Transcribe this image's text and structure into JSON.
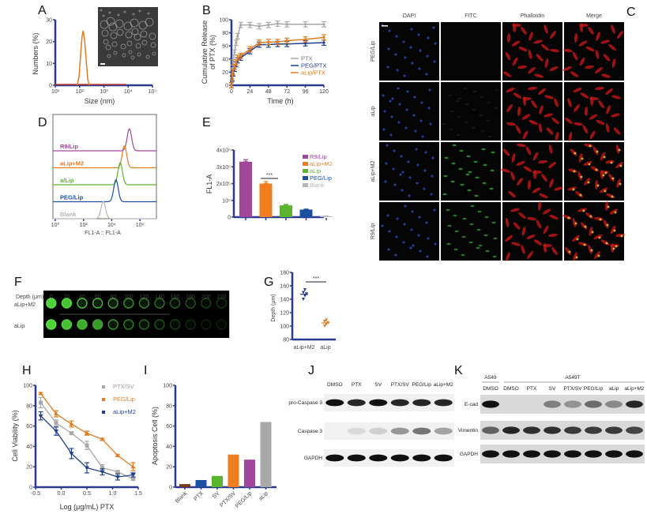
{
  "panels": {
    "A": "A",
    "B": "B",
    "C": "C",
    "D": "D",
    "E": "E",
    "F": "F",
    "G": "G",
    "H": "H",
    "I": "I",
    "J": "J",
    "K": "K"
  },
  "colors": {
    "axis": "#2b3a8f",
    "orange": "#e07b22",
    "gray": "#a8a8a8",
    "navy": "#1f3f8f",
    "purple": "#a0479b",
    "green": "#5ab52e",
    "blue": "#1c4fa0",
    "brown": "#7a3b1a"
  },
  "chart_data": [
    {
      "id": "A",
      "type": "line",
      "xlabel": "Size (nm)",
      "ylabel": "Numbers (%)",
      "xscale": "log",
      "xlim": [
        10,
        100000
      ],
      "ylim": [
        0,
        30
      ],
      "xticks": [
        "10¹",
        "10²",
        "10³",
        "10⁴",
        "10⁵"
      ],
      "yticks": [
        0,
        10,
        20,
        30
      ],
      "x": [
        80,
        95,
        110,
        125,
        140,
        160,
        185,
        215,
        250
      ],
      "y": [
        0,
        4,
        14,
        22,
        25,
        21,
        12,
        3,
        0
      ],
      "inset": "TEM image"
    },
    {
      "id": "B",
      "type": "line",
      "xlabel": "Time (h)",
      "ylabel": "Cumulative Release of PTX (%)",
      "xlim": [
        0,
        120
      ],
      "ylim": [
        0,
        100
      ],
      "xticks": [
        0,
        24,
        48,
        72,
        96,
        120
      ],
      "yticks": [
        0,
        20,
        40,
        60,
        80,
        100
      ],
      "x": [
        0,
        1,
        2,
        4,
        6,
        8,
        12,
        24,
        36,
        48,
        60,
        72,
        96,
        120
      ],
      "series": [
        {
          "name": "PTX",
          "color": "#a8a8a8",
          "values": [
            0,
            22,
            35,
            50,
            65,
            75,
            92,
            92,
            90,
            92,
            94,
            93,
            93,
            93
          ]
        },
        {
          "name": "PEG/PTX",
          "color": "#1f3f8f",
          "values": [
            0,
            10,
            18,
            25,
            32,
            38,
            42,
            52,
            62,
            62,
            63,
            63,
            64,
            65
          ]
        },
        {
          "name": "aLip/PTX",
          "color": "#e07b22",
          "values": [
            0,
            12,
            20,
            28,
            35,
            42,
            45,
            55,
            65,
            66,
            66,
            68,
            70,
            73
          ]
        }
      ],
      "legend": "bottom-right"
    },
    {
      "id": "D",
      "type": "histogram",
      "xlabel": "FL1-A :: FL1-A",
      "xscale": "log",
      "xticks": [
        "10⁰",
        "10²",
        "10⁴",
        "10⁶"
      ],
      "series": [
        {
          "name": "R9/Lip",
          "color": "#a0479b",
          "peak_log10": 5.25
        },
        {
          "name": "aLip+M2",
          "color": "#e07b22",
          "peak_log10": 4.9
        },
        {
          "name": "a/Lip",
          "color": "#5ab52e",
          "peak_log10": 4.6
        },
        {
          "name": "PEG/Lip",
          "color": "#1c4fa0",
          "peak_log10": 4.3
        },
        {
          "name": "Blank",
          "color": "#b5b5b5",
          "peak_log10": 3.4
        }
      ]
    },
    {
      "id": "E",
      "type": "bar",
      "ylabel": "FL1-A",
      "ylim": [
        0,
        400000
      ],
      "yticks": [
        "0",
        "10⁵",
        "2x10⁵",
        "3x10⁵",
        "4x10⁵"
      ],
      "categories": [
        "R9/Lip",
        "aLip+M2",
        "aLip",
        "PEG/Lip",
        "Blank"
      ],
      "values": [
        330000,
        200000,
        70000,
        45000,
        5000
      ],
      "errors": [
        12000,
        12000,
        6000,
        3000,
        1000
      ],
      "colors": [
        "#a0479b",
        "#f07e1e",
        "#5ab52e",
        "#1c4fa0",
        "#b5b5b5"
      ],
      "significance": "***",
      "legend": "right"
    },
    {
      "id": "G",
      "type": "scatter",
      "ylabel": "Depth (μm)",
      "ylim": [
        80,
        180
      ],
      "yticks": [
        80,
        100,
        120,
        140,
        160,
        180
      ],
      "categories": [
        "aLip+M2",
        "aLip"
      ],
      "points": [
        [
          140,
          145,
          148,
          150,
          154
        ],
        [
          100,
          103,
          105,
          107,
          109
        ]
      ],
      "colors": [
        "#2b3a8f",
        "#e07b22"
      ],
      "significance": "***"
    },
    {
      "id": "H",
      "type": "line",
      "xlabel": "Log (μg/mL) PTX",
      "ylabel": "Cell Viability (%)",
      "xlim": [
        -0.5,
        1.5
      ],
      "ylim": [
        0,
        100
      ],
      "xticks": [
        "-0.5",
        "0.0",
        "0.5",
        "1.0",
        "1.5"
      ],
      "yticks": [
        0,
        20,
        40,
        60,
        80,
        100
      ],
      "x": [
        -0.4,
        -0.1,
        0.2,
        0.5,
        0.8,
        1.1,
        1.4
      ],
      "series": [
        {
          "name": "PTX/SV",
          "color": "#a8a8a8",
          "values": [
            83,
            63,
            53,
            41,
            19,
            15,
            8
          ],
          "errors": [
            5,
            3,
            1,
            4,
            3,
            1,
            1
          ]
        },
        {
          "name": "PEG/Lip",
          "color": "#e07b22",
          "values": [
            92,
            72,
            62,
            53,
            47,
            31,
            20
          ],
          "errors": [
            1,
            3,
            3,
            2,
            1,
            1,
            4
          ]
        },
        {
          "name": "aLip+M2",
          "color": "#1f3f8f",
          "values": [
            70,
            55,
            33,
            19,
            15,
            10,
            12
          ],
          "errors": [
            4,
            4,
            5,
            5,
            3,
            3,
            2
          ]
        }
      ],
      "legend": "top-right"
    },
    {
      "id": "I",
      "type": "bar",
      "ylabel": "Apoptosis Cell (%)",
      "ylim": [
        0,
        100
      ],
      "yticks": [
        0,
        20,
        40,
        60,
        80,
        100
      ],
      "categories": [
        "Blank",
        "PTX",
        "SV",
        "PTX/SV",
        "PEG/Lip",
        "aLip"
      ],
      "values": [
        3,
        7,
        11,
        32,
        27,
        64
      ],
      "colors": [
        "#7a3b1a",
        "#1c4fa0",
        "#5ab52e",
        "#f07e1e",
        "#a0479b",
        "#a8a8a8"
      ]
    }
  ],
  "panelC": {
    "columns": [
      "DAPI",
      "FITC",
      "Phalloidin",
      "Merge"
    ],
    "rows": [
      "PEG/Lip",
      "aLip",
      "aLip+M2",
      "R9/Lip"
    ]
  },
  "panelF": {
    "depth_label": "Depth (μm)",
    "depths": [
      "0",
      "20",
      "40",
      "60",
      "80",
      "100",
      "120",
      "140",
      "160",
      "180",
      "200",
      "220"
    ],
    "rows": [
      "aLip+M2",
      "aLip"
    ]
  },
  "panelJ": {
    "lanes": [
      "DMSO",
      "PTX",
      "SV",
      "PTX/SV",
      "PEG/Lip",
      "aLip+M2"
    ],
    "bands": [
      "pro-Caspase 3",
      "Caspase 3",
      "GAPDH"
    ],
    "intensity": [
      [
        1,
        0.9,
        1,
        0.9,
        0.9,
        0.9
      ],
      [
        0,
        0.1,
        0.15,
        0.4,
        0.55,
        0.35
      ],
      [
        1,
        1,
        1,
        1,
        1,
        1
      ]
    ]
  },
  "panelK": {
    "group1": "A549",
    "group2": "A549T",
    "lanes": [
      "DMSO",
      "DMSO",
      "PTX",
      "SV",
      "PTX/SV",
      "PEG/Lip",
      "aLip",
      "aLip+M2"
    ],
    "bands": [
      "E-cad",
      "Vimentin",
      "GAPDH"
    ],
    "intensity": [
      [
        1,
        0,
        0,
        0.45,
        0.35,
        0.55,
        0.4,
        0.9
      ],
      [
        0.6,
        0.9,
        0.85,
        0.85,
        0.8,
        0.8,
        0.8,
        0.75
      ],
      [
        1,
        1,
        1,
        1,
        1,
        1,
        1,
        1
      ]
    ]
  }
}
